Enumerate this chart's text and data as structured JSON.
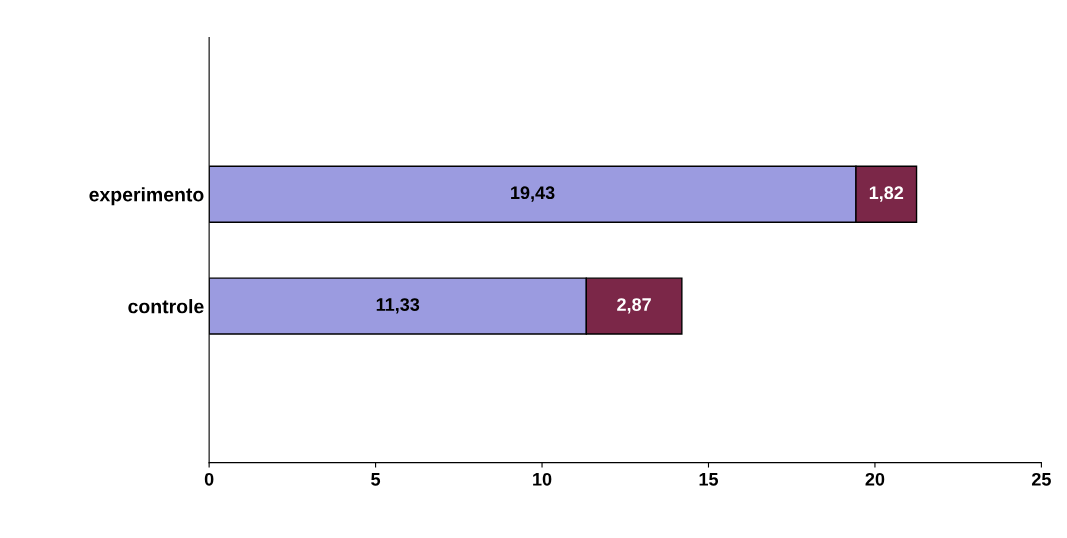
{
  "chart_data": {
    "type": "bar",
    "orientation": "horizontal",
    "stacked": true,
    "categories": [
      "experimento",
      "controle"
    ],
    "series": [
      {
        "color": "#9b9be0",
        "values": [
          19.43,
          11.33
        ],
        "value_labels": [
          "19,43",
          "11,33"
        ]
      },
      {
        "color": "#7b2748",
        "values": [
          1.82,
          2.87
        ],
        "value_labels": [
          "1,82",
          "2,87"
        ]
      }
    ],
    "xlim": [
      0,
      25
    ],
    "xticks": [
      0,
      5,
      10,
      15,
      20,
      25
    ],
    "grid": false,
    "legend": false
  }
}
